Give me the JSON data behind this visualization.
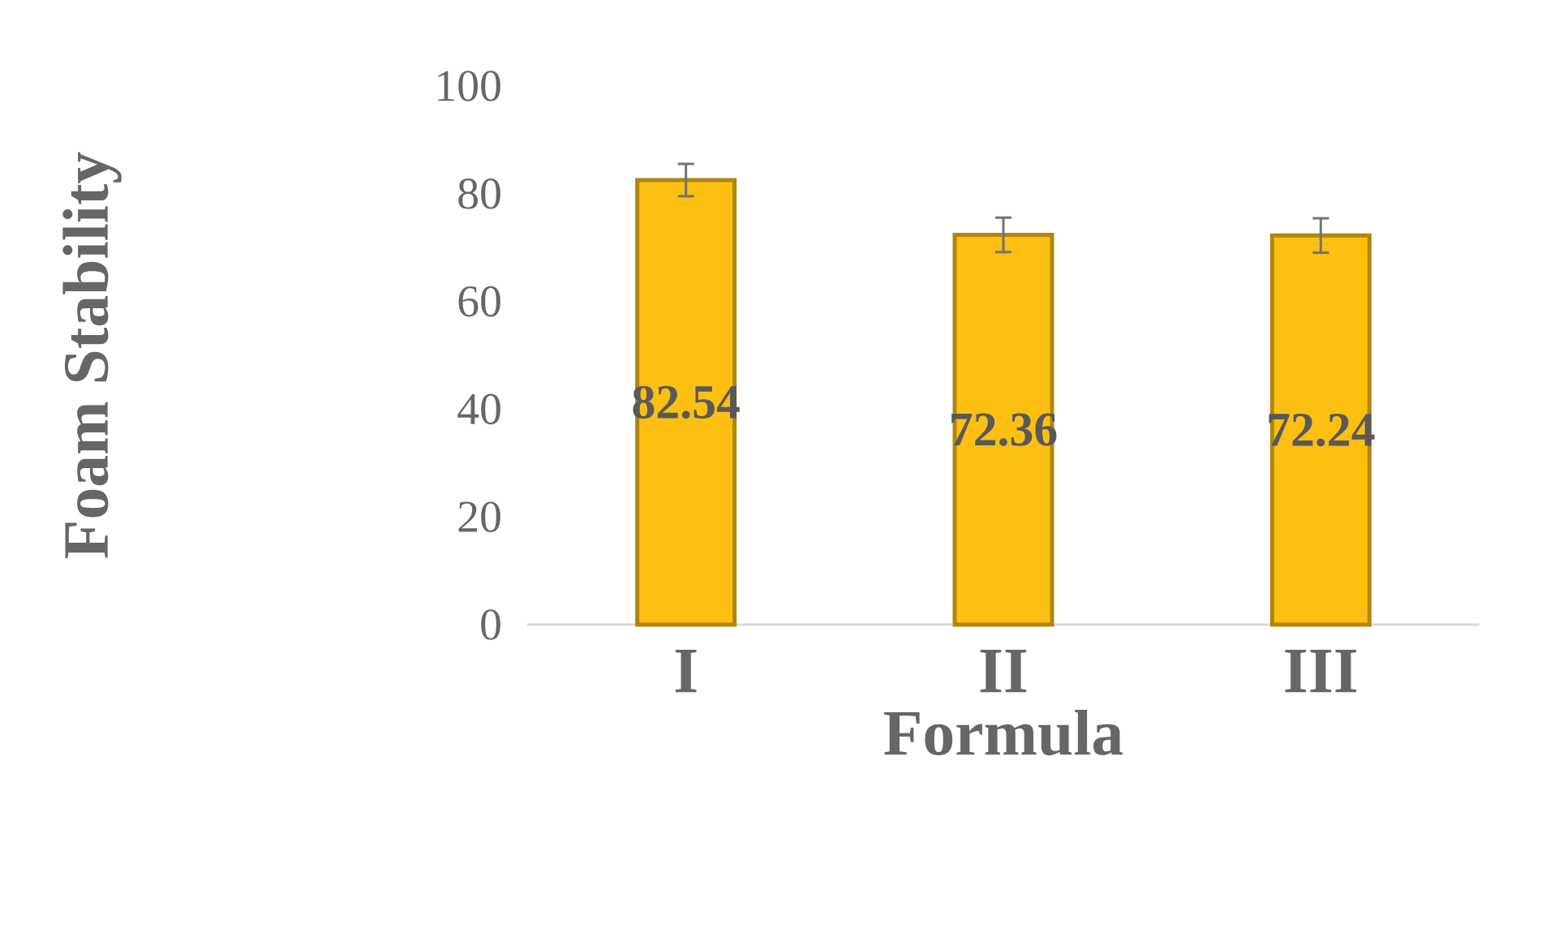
{
  "chart_data": {
    "type": "bar",
    "xlabel": "Formula",
    "ylabel": "Foam Stability",
    "categories": [
      "I",
      "II",
      "III"
    ],
    "values": [
      82.54,
      72.36,
      72.24
    ],
    "errors": [
      3,
      3.2,
      3.2
    ],
    "color": "#fcbf12",
    "ylim": [
      0,
      100
    ],
    "yticks": [
      0,
      20,
      40,
      60,
      80,
      100
    ],
    "data_labels": true,
    "grid": false
  }
}
